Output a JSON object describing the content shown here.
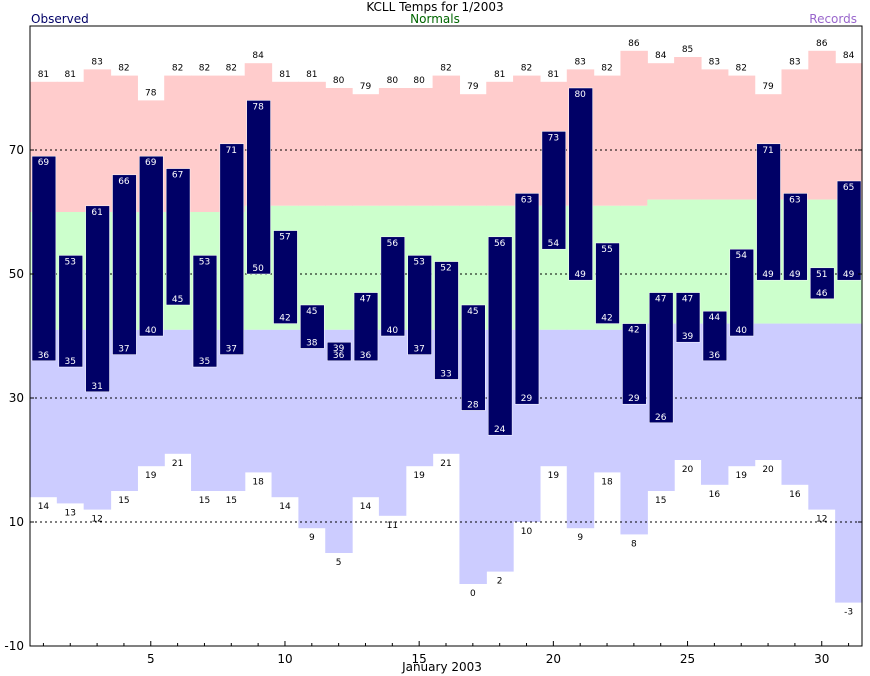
{
  "chart_data": {
    "type": "bar",
    "title": "KCLL Temps for 1/2003",
    "xlabel": "January 2003",
    "ylabel": "",
    "legend": {
      "observed": "Observed",
      "normals": "Normals",
      "records": "Records",
      "placement": "top"
    },
    "colors": {
      "observed": "#000066",
      "normals_text": "#006600",
      "records_text": "#9966cc",
      "record_high_band": "#ffcccc",
      "normal_band": "#ccffcc",
      "record_low_band": "#ccccff",
      "value_label": "#ffffff",
      "record_label": "#000000",
      "gridline": "#000000"
    },
    "ylim": [
      -10,
      90
    ],
    "yticks": [
      -10,
      10,
      30,
      50,
      70
    ],
    "xticks": [
      5,
      10,
      15,
      20,
      25,
      30
    ],
    "grid": "horizontal dashed",
    "days": [
      1,
      2,
      3,
      4,
      5,
      6,
      7,
      8,
      9,
      10,
      11,
      12,
      13,
      14,
      15,
      16,
      17,
      18,
      19,
      20,
      21,
      22,
      23,
      24,
      25,
      26,
      27,
      28,
      29,
      30,
      31
    ],
    "series": [
      {
        "name": "Observed High",
        "values": [
          69,
          53,
          61,
          66,
          69,
          67,
          53,
          71,
          78,
          57,
          45,
          39,
          47,
          56,
          53,
          52,
          45,
          56,
          63,
          73,
          80,
          55,
          42,
          47,
          47,
          44,
          54,
          71,
          63,
          51,
          65
        ]
      },
      {
        "name": "Observed Low",
        "values": [
          36,
          35,
          31,
          37,
          40,
          45,
          35,
          37,
          50,
          42,
          38,
          36,
          36,
          40,
          37,
          33,
          28,
          24,
          29,
          54,
          49,
          42,
          29,
          26,
          39,
          36,
          40,
          49,
          49,
          46,
          49
        ]
      },
      {
        "name": "Record High",
        "values": [
          81,
          81,
          83,
          82,
          78,
          82,
          82,
          82,
          84,
          81,
          81,
          80,
          79,
          80,
          80,
          82,
          79,
          81,
          82,
          81,
          83,
          82,
          86,
          84,
          85,
          83,
          82,
          79,
          83,
          86,
          84
        ]
      },
      {
        "name": "Record Low",
        "values": [
          14,
          13,
          12,
          15,
          19,
          21,
          15,
          15,
          18,
          14,
          9,
          5,
          14,
          11,
          19,
          21,
          0,
          2,
          10,
          19,
          9,
          18,
          8,
          15,
          20,
          16,
          19,
          20,
          16,
          12,
          -3
        ]
      },
      {
        "name": "Normal High",
        "values": [
          60,
          60,
          60,
          60,
          60,
          60,
          60,
          60,
          61,
          61,
          61,
          61,
          61,
          61,
          61,
          61,
          61,
          61,
          61,
          61,
          61,
          61,
          61,
          62,
          62,
          62,
          62,
          62,
          62,
          62,
          62
        ]
      },
      {
        "name": "Normal Low",
        "values": [
          41,
          41,
          41,
          41,
          41,
          41,
          41,
          41,
          41,
          41,
          41,
          41,
          41,
          41,
          41,
          41,
          41,
          41,
          41,
          41,
          41,
          41,
          41,
          42,
          42,
          42,
          42,
          42,
          42,
          42,
          42
        ]
      }
    ]
  }
}
